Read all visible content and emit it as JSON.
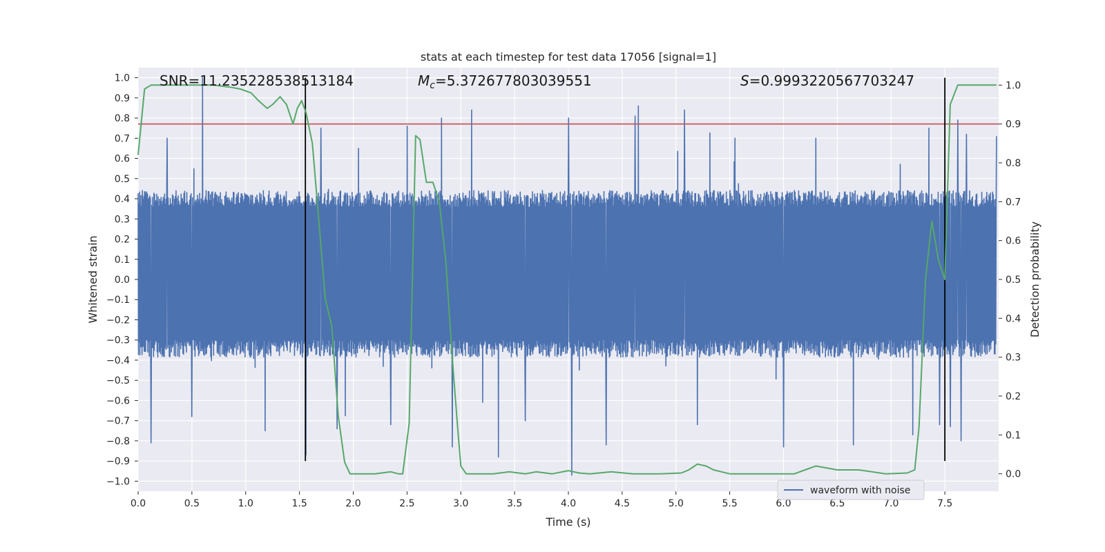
{
  "chart_data": {
    "type": "line",
    "title": "stats at each timestep for test data 17056 [signal=1]",
    "xlabel": "Time (s)",
    "ylabel": "Whitened strain",
    "y2label": "Detection probability",
    "xlim": [
      0.0,
      8.0
    ],
    "ylim": [
      -1.05,
      1.05
    ],
    "y2lim": [
      -0.045,
      1.045
    ],
    "x_ticks": [
      0.0,
      0.5,
      1.0,
      1.5,
      2.0,
      2.5,
      3.0,
      3.5,
      4.0,
      4.5,
      5.0,
      5.5,
      6.0,
      6.5,
      7.0,
      7.5
    ],
    "x_tick_labels": [
      "0.0",
      "0.5",
      "1.0",
      "1.5",
      "2.0",
      "2.5",
      "3.0",
      "3.5",
      "4.0",
      "4.5",
      "5.0",
      "5.5",
      "6.0",
      "6.5",
      "7.0",
      "7.5"
    ],
    "y_ticks": [
      -1.0,
      -0.9,
      -0.8,
      -0.7,
      -0.6,
      -0.5,
      -0.4,
      -0.3,
      -0.2,
      -0.1,
      0.0,
      0.1,
      0.2,
      0.3,
      0.4,
      0.5,
      0.6,
      0.7,
      0.8,
      0.9,
      1.0
    ],
    "y_tick_labels": [
      "−1.0",
      "−0.9",
      "−0.8",
      "−0.7",
      "−0.6",
      "−0.5",
      "−0.4",
      "−0.3",
      "−0.2",
      "−0.1",
      "0.0",
      "0.1",
      "0.2",
      "0.3",
      "0.4",
      "0.5",
      "0.6",
      "0.7",
      "0.8",
      "0.9",
      "1.0"
    ],
    "y2_ticks": [
      0.0,
      0.1,
      0.2,
      0.3,
      0.4,
      0.5,
      0.6,
      0.7,
      0.8,
      0.9,
      1.0
    ],
    "y2_tick_labels": [
      "0.0",
      "0.1",
      "0.2",
      "0.3",
      "0.4",
      "0.5",
      "0.6",
      "0.7",
      "0.8",
      "0.9",
      "1.0"
    ],
    "grid": true,
    "legend": {
      "location": "lower-right",
      "entries": [
        "waveform with noise"
      ]
    },
    "annotations": {
      "snr": "SNR=11.235228538513184",
      "mc_symbol": "M",
      "mc_sub": "c",
      "mc_value": "=5.372677803039551",
      "s_symbol": "S",
      "s_value": "=0.9993220567703247"
    },
    "threshold_y2": 0.9,
    "event_lines_x": [
      1.555,
      7.5
    ],
    "waveform": {
      "name": "waveform with noise",
      "color": "#4c72b0",
      "dense_envelope": [
        -0.35,
        0.42
      ],
      "x_max": 7.98,
      "n_points": 2400,
      "peaks": [
        [
          0.6,
          1.0
        ],
        [
          4.65,
          0.86
        ],
        [
          4.62,
          0.81
        ],
        [
          5.08,
          0.84
        ],
        [
          3.1,
          0.84
        ],
        [
          4.0,
          0.8
        ],
        [
          2.82,
          0.8
        ],
        [
          7.62,
          0.79
        ],
        [
          7.35,
          0.75
        ],
        [
          2.5,
          0.76
        ],
        [
          0.27,
          0.7
        ],
        [
          1.7,
          0.75
        ],
        [
          1.56,
          0.68
        ],
        [
          7.98,
          0.71
        ],
        [
          7.7,
          0.72
        ],
        [
          5.55,
          0.7
        ],
        [
          6.3,
          0.7
        ],
        [
          2.05,
          0.65
        ],
        [
          0.12,
          -0.81
        ],
        [
          4.03,
          -0.97
        ],
        [
          3.35,
          -0.88
        ],
        [
          1.56,
          -0.87
        ],
        [
          2.92,
          -0.83
        ],
        [
          4.35,
          -0.82
        ],
        [
          6.0,
          -0.83
        ],
        [
          6.65,
          -0.82
        ],
        [
          7.2,
          -0.77
        ],
        [
          7.65,
          -0.8
        ],
        [
          7.55,
          -0.73
        ],
        [
          1.18,
          -0.75
        ],
        [
          7.45,
          -0.72
        ],
        [
          0.5,
          -0.68
        ],
        [
          1.85,
          -0.74
        ],
        [
          2.35,
          -0.72
        ],
        [
          5.2,
          -0.72
        ],
        [
          3.6,
          -0.7
        ]
      ]
    },
    "detection_probability": {
      "color": "#55a868",
      "x": [
        0.0,
        0.06,
        0.12,
        0.2,
        0.3,
        0.5,
        0.7,
        0.85,
        0.95,
        1.05,
        1.12,
        1.2,
        1.25,
        1.32,
        1.38,
        1.44,
        1.48,
        1.52,
        1.56,
        1.62,
        1.68,
        1.74,
        1.8,
        1.86,
        1.92,
        1.97,
        2.05,
        2.2,
        2.35,
        2.42,
        2.46,
        2.52,
        2.58,
        2.62,
        2.68,
        2.74,
        2.8,
        2.86,
        2.92,
        2.97,
        3.0,
        3.05,
        3.1,
        3.3,
        3.45,
        3.6,
        3.7,
        3.85,
        4.0,
        4.1,
        4.2,
        4.4,
        4.6,
        4.85,
        5.05,
        5.12,
        5.2,
        5.28,
        5.35,
        5.5,
        5.75,
        6.1,
        6.2,
        6.3,
        6.5,
        6.7,
        6.95,
        7.15,
        7.22,
        7.26,
        7.32,
        7.38,
        7.44,
        7.5,
        7.55,
        7.62,
        7.7,
        7.98
      ],
      "y": [
        0.82,
        0.99,
        1.0,
        1.0,
        1.0,
        1.0,
        1.0,
        0.995,
        0.99,
        0.98,
        0.96,
        0.94,
        0.95,
        0.97,
        0.95,
        0.9,
        0.94,
        0.96,
        0.93,
        0.85,
        0.65,
        0.45,
        0.38,
        0.15,
        0.03,
        0.0,
        0.0,
        0.0,
        0.005,
        0.0,
        0.0,
        0.13,
        0.87,
        0.86,
        0.75,
        0.75,
        0.7,
        0.55,
        0.3,
        0.12,
        0.02,
        0.0,
        0.0,
        0.0,
        0.005,
        0.0,
        0.005,
        0.0,
        0.008,
        0.002,
        0.0,
        0.005,
        0.0,
        0.0,
        0.002,
        0.01,
        0.025,
        0.02,
        0.01,
        0.0,
        0.0,
        0.0,
        0.01,
        0.02,
        0.01,
        0.01,
        0.0,
        0.002,
        0.01,
        0.12,
        0.5,
        0.65,
        0.55,
        0.5,
        0.95,
        1.0,
        1.0,
        1.0
      ]
    }
  }
}
